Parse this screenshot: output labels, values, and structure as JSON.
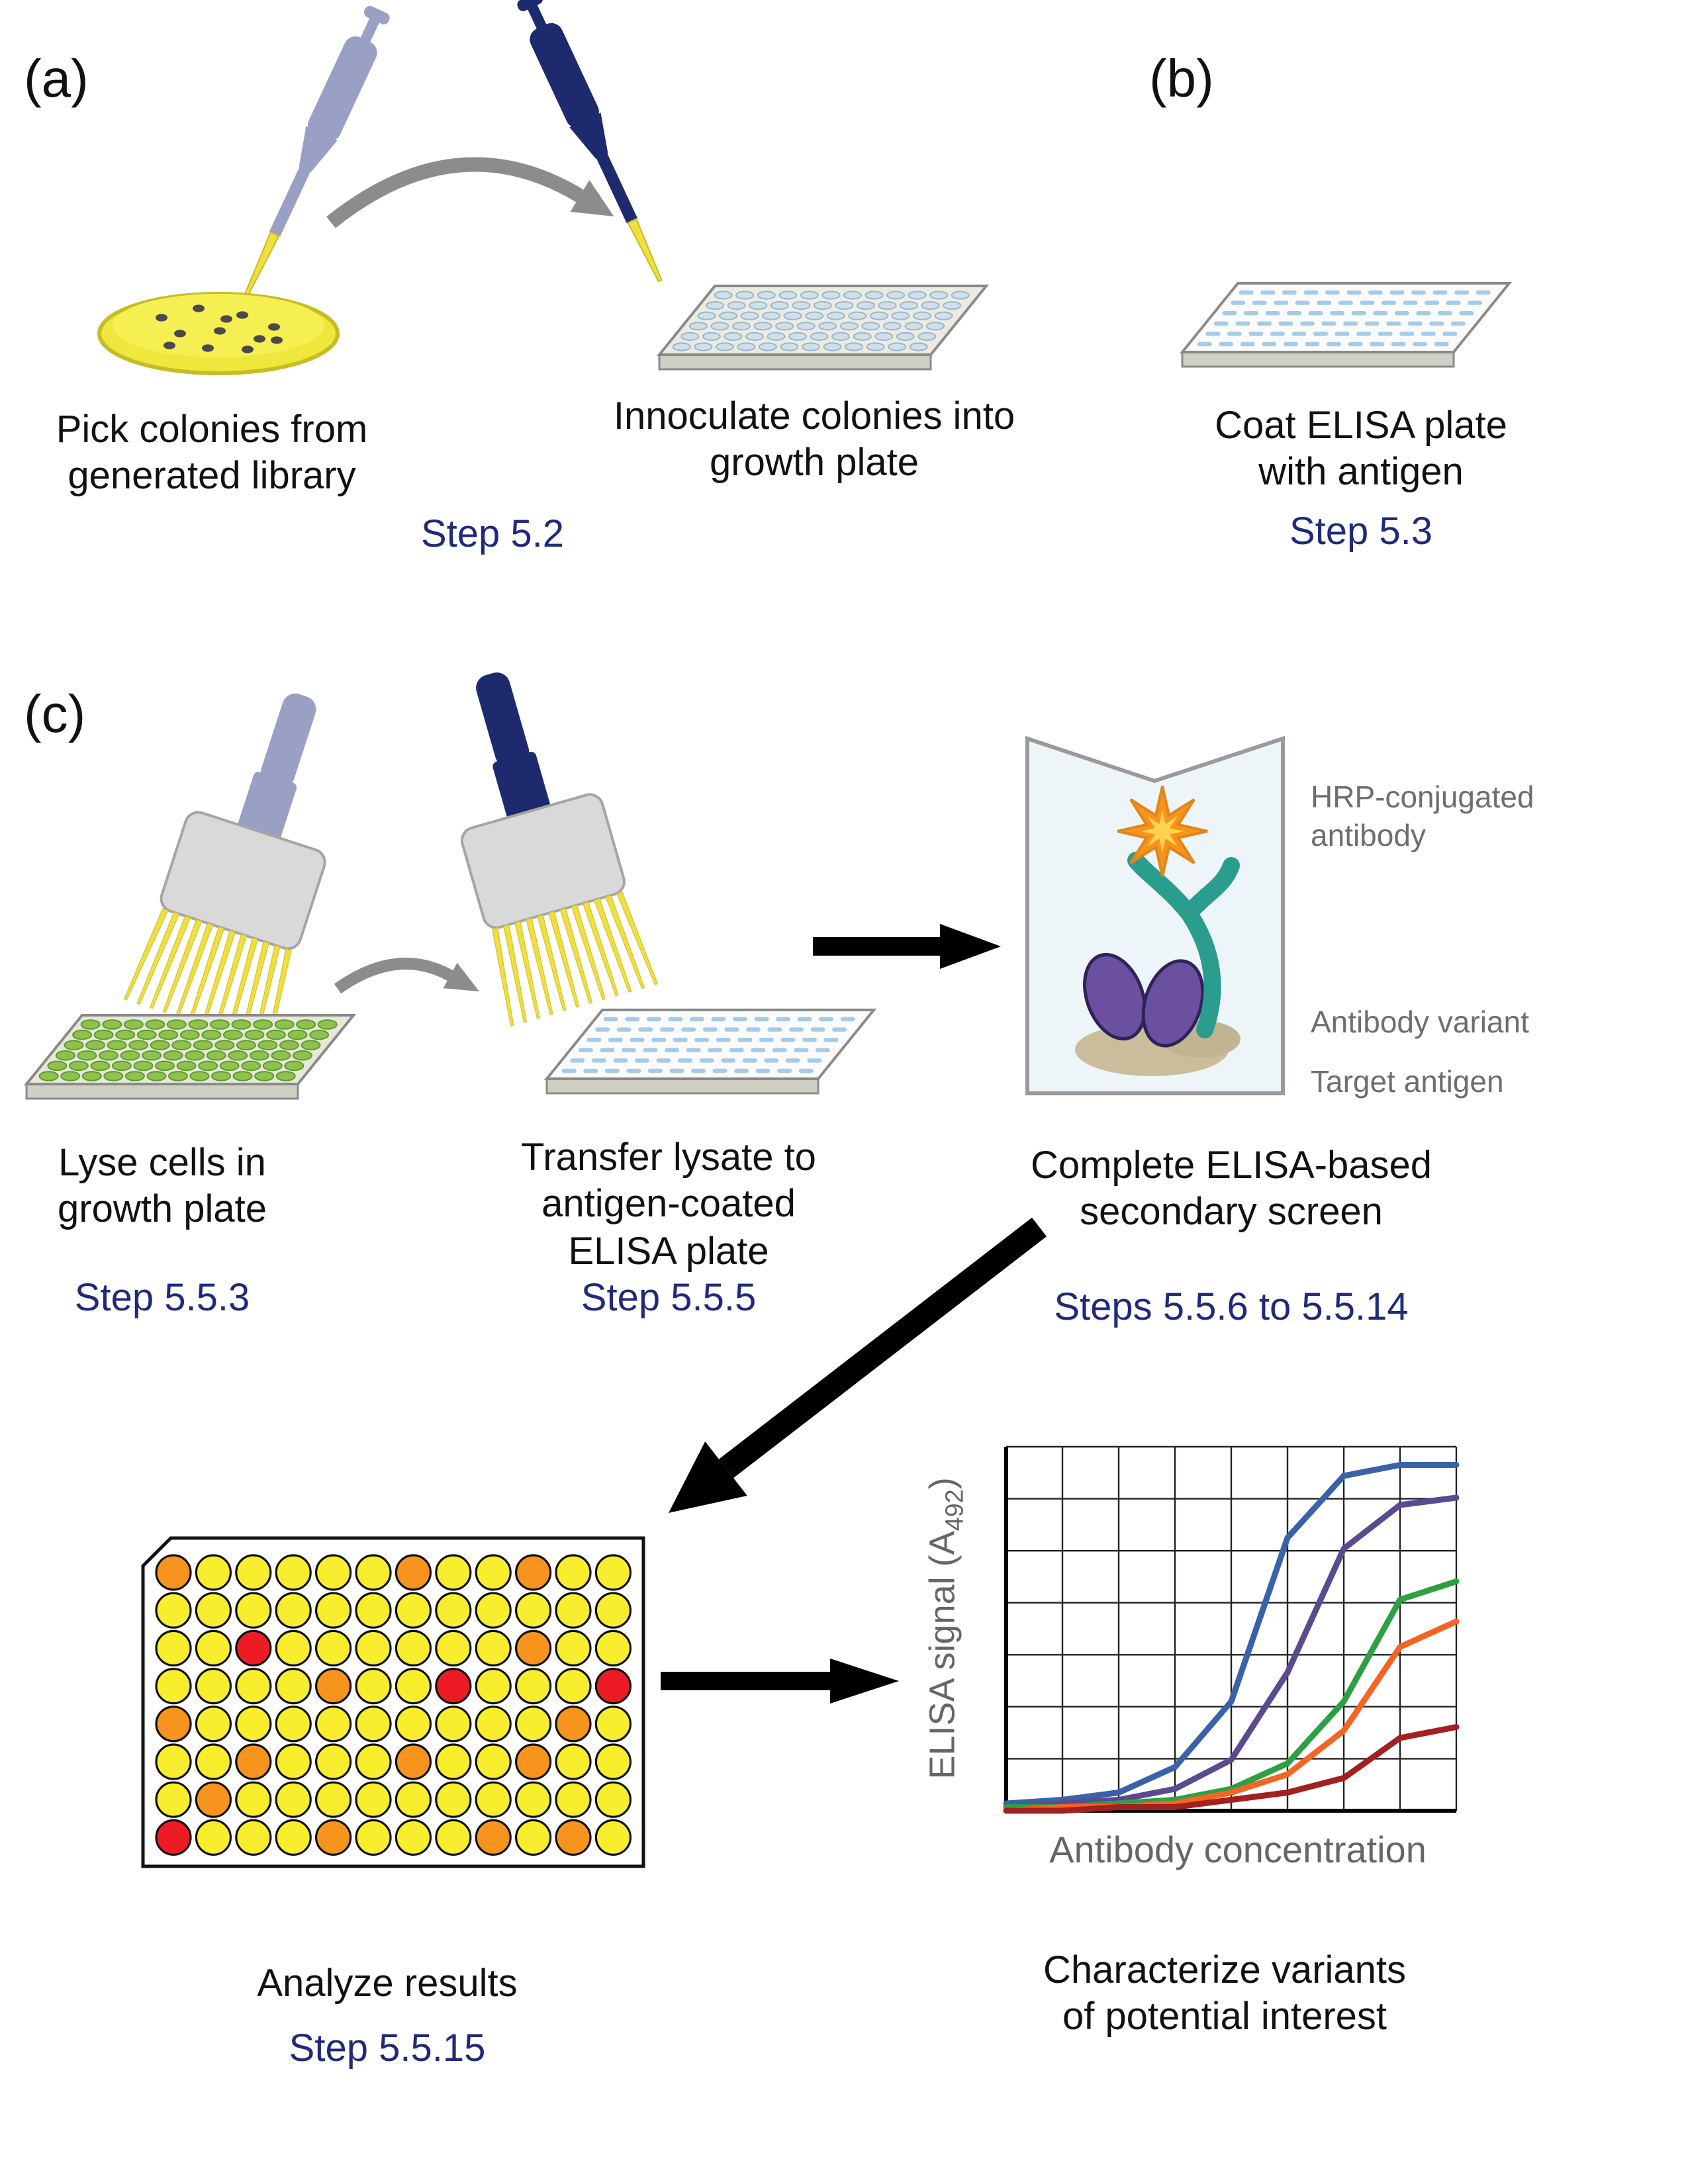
{
  "panel_a": {
    "label": "(a)",
    "caption_pick": "Pick colonies from\ngenerated library",
    "caption_inoculate": "Innoculate colonies into\ngrowth plate",
    "step": "Step 5.2"
  },
  "panel_b": {
    "label": "(b)",
    "caption": "Coat ELISA plate\nwith antigen",
    "step": "Step 5.3"
  },
  "panel_c": {
    "label": "(c)",
    "caption_lyse": "Lyse cells in\ngrowth plate",
    "step_lyse": "Step 5.5.3",
    "caption_transfer": "Transfer lysate to\nantigen-coated\nELISA plate",
    "step_transfer": "Step 5.5.5",
    "caption_screen": "Complete ELISA-based\nsecondary screen",
    "step_screen": "Steps 5.5.6 to 5.5.14",
    "beaker_labels": {
      "hrp": "HRP-conjugated\nantibody",
      "variant": "Antibody variant",
      "antigen": "Target antigen"
    },
    "caption_analyze": "Analyze results",
    "step_analyze": "Step 5.5.15",
    "caption_characterize": "Characterize variants\nof potential interest"
  },
  "results_plate": {
    "palette": {
      "Y": "#f9ee2e",
      "O": "#f7941d",
      "R": "#ed1c24"
    },
    "rows": [
      "OYYYYYOYYOYY",
      "YYYYYYYYYYYY",
      "YYRYYYYYYOYY",
      "YYYYOYYRYYYR",
      "OYYYYYYYYYOY",
      "YYOYYYOYYOYY",
      "YOYYYYYYYYYY",
      "RYYYOYYYOYOY"
    ]
  },
  "chart_data": {
    "type": "line",
    "title": "",
    "xlabel": "Antibody concentration",
    "ylabel": "ELISA signal (A492)",
    "ylabel_parts": [
      "ELISA signal (A",
      "492",
      ")"
    ],
    "grid": true,
    "legend": "none",
    "ylim": [
      0,
      1
    ],
    "x": [
      1,
      2,
      3,
      4,
      5,
      6,
      7,
      8,
      9
    ],
    "series": [
      {
        "name": "variant-blue",
        "color": "#3a62a8",
        "values": [
          0.02,
          0.03,
          0.05,
          0.12,
          0.3,
          0.75,
          0.92,
          0.95,
          0.95
        ]
      },
      {
        "name": "variant-purple",
        "color": "#5c4a91",
        "values": [
          0.01,
          0.02,
          0.03,
          0.06,
          0.14,
          0.38,
          0.72,
          0.84,
          0.86
        ]
      },
      {
        "name": "variant-green",
        "color": "#2ea044",
        "values": [
          0.01,
          0.01,
          0.02,
          0.03,
          0.06,
          0.13,
          0.3,
          0.58,
          0.63
        ]
      },
      {
        "name": "variant-orange",
        "color": "#f26522",
        "values": [
          0.0,
          0.01,
          0.01,
          0.02,
          0.05,
          0.1,
          0.22,
          0.45,
          0.52
        ]
      },
      {
        "name": "variant-darkred",
        "color": "#a32020",
        "values": [
          0.0,
          0.0,
          0.01,
          0.01,
          0.03,
          0.05,
          0.09,
          0.2,
          0.23
        ]
      }
    ]
  },
  "colors": {
    "step_text": "#1f2a7a",
    "caption_text": "#111111",
    "gray_label": "#6e6e6e",
    "pipette_light": "#9aa0c4",
    "pipette_dark": "#1e2a6e",
    "tip_yellow": "#f0df3e",
    "petri_yellow": "#f6ef52",
    "antibody_teal": "#2a9d8f",
    "variant_purple": "#6b4fa1",
    "antigen_tan": "#c9bd9c",
    "hrp_star_orange": "#f7941d",
    "arrow_gray": "#8c8c8c",
    "arrow_black": "#000000"
  }
}
